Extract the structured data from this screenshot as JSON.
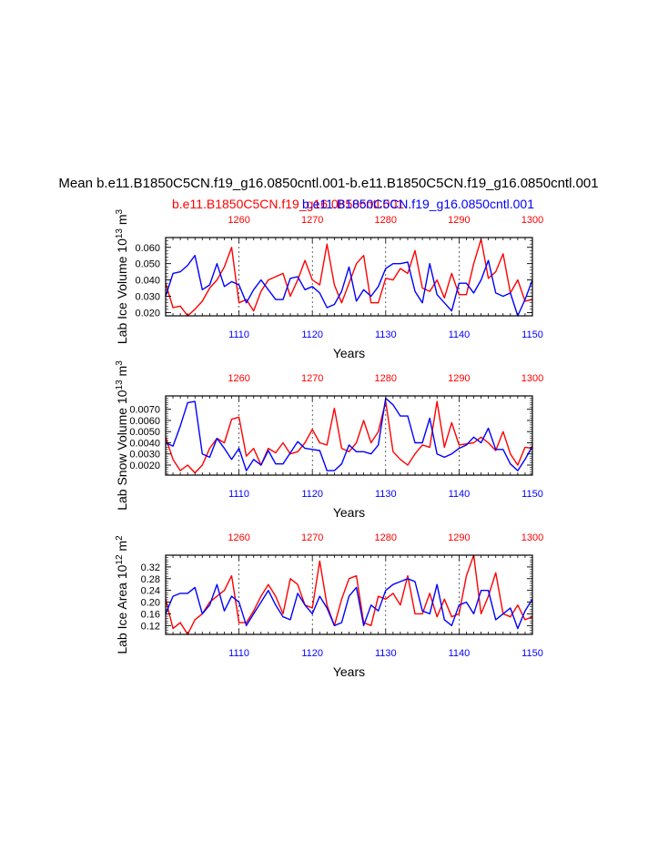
{
  "figure": {
    "title": "Mean b.e11.B1850C5CN.f19_g16.0850cntl.001-b.e11.B1850C5CN.f19_g16.0850cntl.001",
    "legend_red": "b.e11.B1850C5CN.f19_g16.0850cntl.001",
    "legend_blue": "b.e11.B1850C5CN.f19_g16.0850cntl.001",
    "colors": {
      "red": "#ff0000",
      "blue": "#0000ff",
      "axis": "#000000"
    }
  },
  "chart_data": [
    {
      "type": "line",
      "xlabel": "Years",
      "ylabel_main": "Lab Ice Volume 10",
      "ylabel_exp": "13",
      "ylabel_unit": " m",
      "ylabel_unit_exp": "3",
      "ylim": [
        0.018,
        0.066
      ],
      "yticks": [
        0.02,
        0.03,
        0.04,
        0.05,
        0.06
      ],
      "ytick_labels": [
        "0.020",
        "0.030",
        "0.040",
        "0.050",
        "0.060"
      ],
      "top_axis": {
        "range": [
          1250,
          1300
        ],
        "ticks": [
          1260,
          1270,
          1280,
          1290,
          1300
        ],
        "labels": [
          "1260",
          "1270",
          "1280",
          "1290",
          "1300"
        ]
      },
      "bottom_axis": {
        "range": [
          1100,
          1150
        ],
        "ticks": [
          1110,
          1120,
          1130,
          1140,
          1150
        ],
        "labels": [
          "1110",
          "1120",
          "1130",
          "1140",
          "1150"
        ]
      },
      "series": [
        {
          "name": "b.e11.B1850C5CN.f19_g16.0850cntl.001",
          "color": "red",
          "values": [
            0.038,
            0.023,
            0.024,
            0.018,
            0.022,
            0.027,
            0.035,
            0.04,
            0.048,
            0.06,
            0.026,
            0.028,
            0.021,
            0.033,
            0.04,
            0.042,
            0.044,
            0.03,
            0.04,
            0.052,
            0.04,
            0.037,
            0.062,
            0.037,
            0.026,
            0.038,
            0.05,
            0.055,
            0.026,
            0.026,
            0.041,
            0.04,
            0.047,
            0.044,
            0.058,
            0.035,
            0.033,
            0.04,
            0.029,
            0.044,
            0.031,
            0.031,
            0.05,
            0.065,
            0.041,
            0.045,
            0.056,
            0.032,
            0.04,
            0.027,
            0.028
          ]
        },
        {
          "name": "b.e11.B1850C5CN.f19_g16.0850cntl.001",
          "color": "blue",
          "values": [
            0.03,
            0.044,
            0.045,
            0.049,
            0.055,
            0.034,
            0.037,
            0.05,
            0.036,
            0.039,
            0.037,
            0.026,
            0.034,
            0.04,
            0.034,
            0.028,
            0.028,
            0.041,
            0.042,
            0.034,
            0.036,
            0.032,
            0.023,
            0.025,
            0.033,
            0.048,
            0.027,
            0.034,
            0.03,
            0.036,
            0.047,
            0.05,
            0.05,
            0.051,
            0.033,
            0.026,
            0.05,
            0.031,
            0.026,
            0.021,
            0.038,
            0.038,
            0.032,
            0.04,
            0.052,
            0.032,
            0.03,
            0.032,
            0.018,
            0.028,
            0.04
          ]
        }
      ]
    },
    {
      "type": "line",
      "xlabel": "Years",
      "ylabel_main": "Lab Snow Volume 10",
      "ylabel_exp": "13",
      "ylabel_unit": " m",
      "ylabel_unit_exp": "3",
      "ylim": [
        0.0011,
        0.0082
      ],
      "yticks": [
        0.002,
        0.003,
        0.004,
        0.005,
        0.006,
        0.007
      ],
      "ytick_labels": [
        "0.0020",
        "0.0030",
        "0.0040",
        "0.0050",
        "0.0060",
        "0.0070"
      ],
      "top_axis": {
        "range": [
          1250,
          1300
        ],
        "ticks": [
          1260,
          1270,
          1280,
          1290,
          1300
        ],
        "labels": [
          "1260",
          "1270",
          "1280",
          "1290",
          "1300"
        ]
      },
      "bottom_axis": {
        "range": [
          1100,
          1150
        ],
        "ticks": [
          1110,
          1120,
          1130,
          1140,
          1150
        ],
        "labels": [
          "1110",
          "1120",
          "1130",
          "1140",
          "1150"
        ]
      },
      "series": [
        {
          "name": "b.e11.B1850C5CN.f19_g16.0850cntl.001",
          "color": "red",
          "values": [
            0.0045,
            0.0025,
            0.0015,
            0.002,
            0.0013,
            0.002,
            0.0035,
            0.0044,
            0.004,
            0.0061,
            0.0063,
            0.0028,
            0.0035,
            0.002,
            0.0035,
            0.0031,
            0.004,
            0.003,
            0.0032,
            0.004,
            0.0052,
            0.004,
            0.0038,
            0.0071,
            0.0035,
            0.0032,
            0.004,
            0.006,
            0.004,
            0.005,
            0.0077,
            0.0032,
            0.0025,
            0.002,
            0.003,
            0.0038,
            0.0036,
            0.0077,
            0.0036,
            0.0058,
            0.0038,
            0.0039,
            0.004,
            0.0045,
            0.004,
            0.0033,
            0.005,
            0.003,
            0.002,
            0.0036,
            0.0035
          ]
        },
        {
          "name": "b.e11.B1850C5CN.f19_g16.0850cntl.001",
          "color": "blue",
          "values": [
            0.004,
            0.0037,
            0.0055,
            0.0076,
            0.0077,
            0.003,
            0.0027,
            0.0044,
            0.0035,
            0.0025,
            0.0035,
            0.0015,
            0.0025,
            0.002,
            0.0033,
            0.0021,
            0.0021,
            0.0031,
            0.0041,
            0.0035,
            0.0034,
            0.0033,
            0.0015,
            0.0015,
            0.0021,
            0.0038,
            0.0032,
            0.0032,
            0.003,
            0.0038,
            0.008,
            0.0074,
            0.0064,
            0.0064,
            0.004,
            0.004,
            0.0062,
            0.003,
            0.0027,
            0.003,
            0.0035,
            0.0038,
            0.0045,
            0.004,
            0.0053,
            0.0034,
            0.0034,
            0.0021,
            0.0015,
            0.0025,
            0.0037
          ]
        }
      ]
    },
    {
      "type": "line",
      "xlabel": "Years",
      "ylabel_main": "Lab Ice Area 10",
      "ylabel_exp": "12",
      "ylabel_unit": " m",
      "ylabel_unit_exp": "2",
      "ylim": [
        0.09,
        0.36
      ],
      "yticks": [
        0.12,
        0.16,
        0.2,
        0.24,
        0.28,
        0.32
      ],
      "ytick_labels": [
        "0.12",
        "0.16",
        "0.20",
        "0.24",
        "0.28",
        "0.32"
      ],
      "top_axis": {
        "range": [
          1250,
          1300
        ],
        "ticks": [
          1260,
          1270,
          1280,
          1290,
          1300
        ],
        "labels": [
          "1260",
          "1270",
          "1280",
          "1290",
          "1300"
        ]
      },
      "bottom_axis": {
        "range": [
          1100,
          1150
        ],
        "ticks": [
          1110,
          1120,
          1130,
          1140,
          1150
        ],
        "labels": [
          "1110",
          "1120",
          "1130",
          "1140",
          "1150"
        ]
      },
      "series": [
        {
          "name": "b.e11.B1850C5CN.f19_g16.0850cntl.001",
          "color": "red",
          "values": [
            0.21,
            0.11,
            0.13,
            0.09,
            0.14,
            0.16,
            0.2,
            0.22,
            0.24,
            0.29,
            0.13,
            0.13,
            0.17,
            0.22,
            0.26,
            0.22,
            0.16,
            0.28,
            0.26,
            0.19,
            0.18,
            0.34,
            0.19,
            0.12,
            0.21,
            0.28,
            0.29,
            0.13,
            0.12,
            0.22,
            0.21,
            0.23,
            0.19,
            0.29,
            0.16,
            0.16,
            0.23,
            0.15,
            0.21,
            0.15,
            0.16,
            0.29,
            0.36,
            0.16,
            0.22,
            0.3,
            0.16,
            0.15,
            0.19,
            0.14,
            0.15
          ]
        },
        {
          "name": "b.e11.B1850C5CN.f19_g16.0850cntl.001",
          "color": "blue",
          "values": [
            0.16,
            0.22,
            0.23,
            0.23,
            0.25,
            0.16,
            0.19,
            0.26,
            0.17,
            0.22,
            0.2,
            0.12,
            0.16,
            0.2,
            0.24,
            0.19,
            0.15,
            0.14,
            0.23,
            0.19,
            0.16,
            0.22,
            0.18,
            0.12,
            0.13,
            0.22,
            0.25,
            0.12,
            0.19,
            0.17,
            0.24,
            0.26,
            0.27,
            0.28,
            0.27,
            0.17,
            0.16,
            0.26,
            0.14,
            0.12,
            0.19,
            0.2,
            0.16,
            0.24,
            0.24,
            0.14,
            0.16,
            0.18,
            0.11,
            0.17,
            0.21
          ]
        }
      ]
    }
  ]
}
